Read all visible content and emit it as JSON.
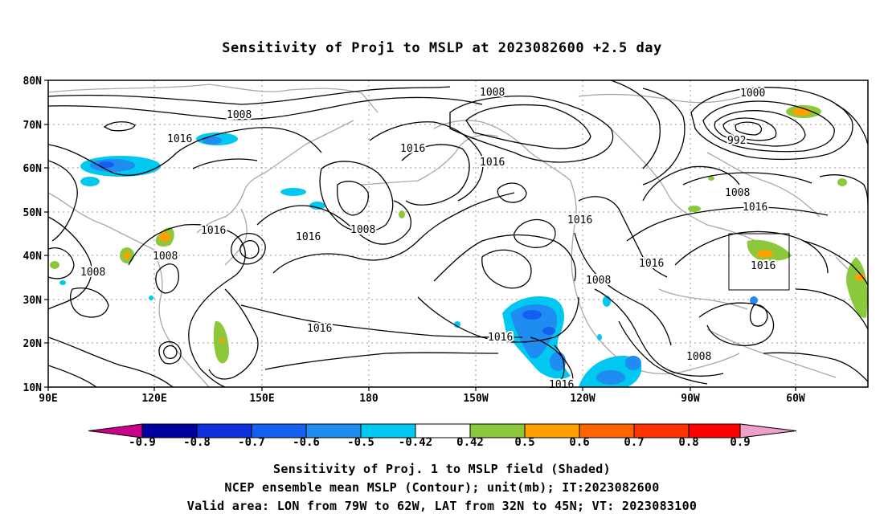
{
  "title": "Sensitivity of Proj1 to MSLP at 2023082600 +2.5 day",
  "axes": {
    "lat_labels": [
      "80N",
      "70N",
      "60N",
      "50N",
      "40N",
      "30N",
      "20N",
      "10N"
    ],
    "lon_labels": [
      "90E",
      "120E",
      "150E",
      "180",
      "150W",
      "120W",
      "90W",
      "60W"
    ]
  },
  "contour_labels": [
    "1008",
    "1016",
    "1016",
    "1008",
    "1016",
    "1016",
    "1008",
    "1008",
    "1016",
    "1016",
    "1016",
    "1008",
    "1016",
    "1008",
    "1016",
    "1016",
    "1000",
    "992",
    "1008",
    "1016",
    "1016",
    "1008",
    "1008",
    "1016"
  ],
  "colorbar": {
    "labels": [
      "-0.9",
      "-0.8",
      "-0.7",
      "-0.6",
      "-0.5",
      "-0.42",
      "0.42",
      "0.5",
      "0.6",
      "0.7",
      "0.8",
      "0.9"
    ],
    "colors": [
      "#c8008c",
      "#0000a0",
      "#1030e0",
      "#1460f0",
      "#1e8cf0",
      "#00c8f0",
      "#ffffff",
      "#8cc83c",
      "#ffa000",
      "#ff6400",
      "#ff3200",
      "#ff0000",
      "#f0a0c8"
    ]
  },
  "captions": [
    "Sensitivity of Proj. 1 to MSLP field (Shaded)",
    "NCEP ensemble mean MSLP (Contour); unit(mb); IT:2023082600",
    "Valid area: LON from 79W to 62W, LAT from 32N to 45N; VT: 2023083100"
  ]
}
